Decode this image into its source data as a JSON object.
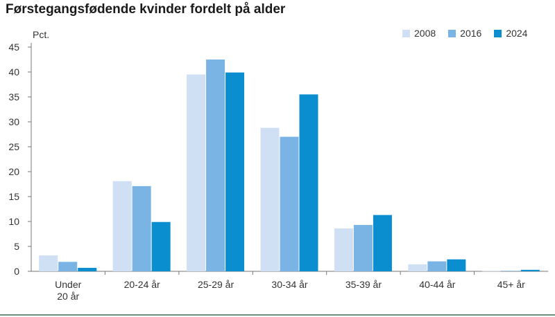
{
  "title": "Førstegangsfødende kvinder fordelt på alder",
  "chart_data": {
    "type": "bar",
    "title": "Førstegangsfødende kvinder fordelt på alder",
    "ylabel": "Pct.",
    "xlabel": "",
    "ylim": [
      0,
      45
    ],
    "yticks": [
      0,
      5,
      10,
      15,
      20,
      25,
      30,
      35,
      40,
      45
    ],
    "grid": false,
    "legend_position": "top-right",
    "categories": [
      [
        "Under",
        "20 år"
      ],
      [
        "20-24 år"
      ],
      [
        "25-29 år"
      ],
      [
        "30-34 år"
      ],
      [
        "35-39 år"
      ],
      [
        "40-44 år"
      ],
      [
        "45+ år"
      ]
    ],
    "series": [
      {
        "name": "2008",
        "color": "#cfe0f4",
        "values": [
          3.2,
          18.1,
          39.5,
          28.8,
          8.6,
          1.4,
          0.05
        ]
      },
      {
        "name": "2016",
        "color": "#7ab4e4",
        "values": [
          1.9,
          17.1,
          42.5,
          27.0,
          9.3,
          2.0,
          0.1
        ]
      },
      {
        "name": "2024",
        "color": "#0a8ecf",
        "values": [
          0.7,
          9.9,
          39.9,
          35.5,
          11.3,
          2.4,
          0.3
        ]
      }
    ]
  }
}
